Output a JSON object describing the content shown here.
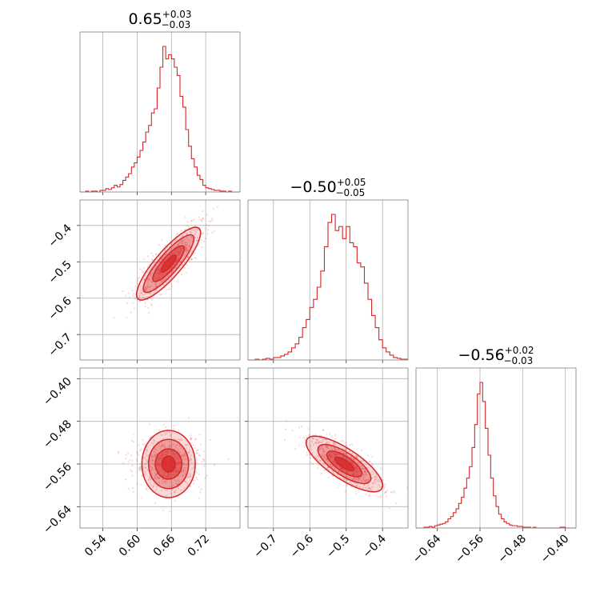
{
  "colors": {
    "series": "#d62728",
    "frame": "#808080",
    "grid": "#b0b0b0"
  },
  "chart_data": {
    "type": "corner",
    "description_of_parameters": 3,
    "parameters": [
      {
        "title": {
          "median": "0.65",
          "plus": "+0.03",
          "minus": "−0.03"
        },
        "range": [
          0.5,
          0.78
        ],
        "ticks": [
          0.54,
          0.6,
          0.66,
          0.72
        ],
        "tick_labels": [
          "0.54",
          "0.60",
          "0.66",
          "0.72"
        ],
        "hist_bins": [
          0.5,
          0.505,
          0.51,
          0.515,
          0.52,
          0.525,
          0.53,
          0.535,
          0.54,
          0.545,
          0.55,
          0.555,
          0.56,
          0.565,
          0.57,
          0.575,
          0.58,
          0.585,
          0.59,
          0.595,
          0.6,
          0.605,
          0.61,
          0.615,
          0.62,
          0.625,
          0.63,
          0.635,
          0.64,
          0.645,
          0.65,
          0.655,
          0.66,
          0.665,
          0.67,
          0.675,
          0.68,
          0.685,
          0.69,
          0.695,
          0.7,
          0.705,
          0.71,
          0.715,
          0.72,
          0.725,
          0.73,
          0.735,
          0.74,
          0.745,
          0.75,
          0.755,
          0.76,
          0.765,
          0.77,
          0.775,
          0.78
        ],
        "hist_counts": [
          0,
          0,
          1,
          0,
          1,
          1,
          0,
          2,
          2,
          4,
          3,
          5,
          8,
          6,
          9,
          14,
          18,
          22,
          30,
          35,
          42,
          50,
          60,
          72,
          80,
          95,
          100,
          125,
          150,
          175,
          160,
          165,
          160,
          150,
          140,
          115,
          102,
          75,
          55,
          40,
          30,
          20,
          15,
          8,
          5,
          4,
          3,
          2,
          2,
          1,
          1,
          0,
          1,
          0,
          0,
          0
        ]
      },
      {
        "title": {
          "median": "−0.50",
          "plus": "+0.05",
          "minus": "−0.05"
        },
        "range": [
          -0.77,
          -0.33
        ],
        "ticks": [
          -0.7,
          -0.6,
          -0.5,
          -0.4
        ],
        "tick_labels": [
          "−0.7",
          "−0.6",
          "−0.5",
          "−0.4"
        ],
        "hist_bins": [
          -0.77,
          -0.76,
          -0.75,
          -0.74,
          -0.73,
          -0.72,
          -0.71,
          -0.7,
          -0.69,
          -0.68,
          -0.67,
          -0.66,
          -0.65,
          -0.64,
          -0.63,
          -0.62,
          -0.61,
          -0.6,
          -0.59,
          -0.58,
          -0.57,
          -0.56,
          -0.55,
          -0.54,
          -0.53,
          -0.52,
          -0.51,
          -0.5,
          -0.49,
          -0.48,
          -0.47,
          -0.46,
          -0.45,
          -0.44,
          -0.43,
          -0.42,
          -0.41,
          -0.4,
          -0.39,
          -0.38,
          -0.37,
          -0.36,
          -0.35,
          -0.34,
          -0.33
        ],
        "hist_counts": [
          0,
          0,
          1,
          0,
          1,
          2,
          1,
          3,
          3,
          5,
          7,
          10,
          15,
          20,
          28,
          40,
          50,
          65,
          75,
          90,
          110,
          140,
          170,
          180,
          160,
          165,
          150,
          165,
          145,
          140,
          120,
          115,
          95,
          75,
          55,
          40,
          25,
          15,
          10,
          6,
          3,
          2,
          1,
          1
        ]
      },
      {
        "title": {
          "median": "−0.56",
          "plus": "+0.02",
          "minus": "−0.03"
        },
        "range": [
          -0.68,
          -0.38
        ],
        "ticks": [
          -0.64,
          -0.56,
          -0.48,
          -0.4
        ],
        "tick_labels": [
          "−0.64",
          "−0.56",
          "−0.48",
          "−0.40"
        ],
        "hist_bins": [
          -0.68,
          -0.675,
          -0.67,
          -0.665,
          -0.66,
          -0.655,
          -0.65,
          -0.645,
          -0.64,
          -0.635,
          -0.63,
          -0.625,
          -0.62,
          -0.615,
          -0.61,
          -0.605,
          -0.6,
          -0.595,
          -0.59,
          -0.585,
          -0.58,
          -0.575,
          -0.57,
          -0.565,
          -0.56,
          -0.555,
          -0.55,
          -0.545,
          -0.54,
          -0.535,
          -0.53,
          -0.525,
          -0.52,
          -0.515,
          -0.51,
          -0.505,
          -0.5,
          -0.495,
          -0.49,
          -0.485,
          -0.48,
          -0.475,
          -0.47,
          -0.465,
          -0.46,
          -0.455,
          -0.45,
          -0.44,
          -0.43,
          -0.42,
          -0.41,
          -0.4,
          -0.39,
          -0.38
        ],
        "hist_counts": [
          0,
          0,
          0,
          1,
          1,
          2,
          1,
          3,
          4,
          5,
          6,
          8,
          12,
          15,
          20,
          25,
          32,
          40,
          52,
          65,
          80,
          105,
          135,
          175,
          190,
          165,
          130,
          95,
          65,
          42,
          28,
          18,
          12,
          8,
          6,
          4,
          3,
          3,
          2,
          2,
          1,
          1,
          1,
          0,
          1,
          0,
          0,
          0,
          0,
          0,
          1,
          0,
          0
        ]
      }
    ],
    "pairs": [
      {
        "x_param": 0,
        "y_param": 1,
        "correlation": 0.85,
        "center": [
          0.655,
          -0.505
        ],
        "sigma": [
          0.028,
          0.05
        ],
        "yticks": [
          -0.4,
          -0.5,
          -0.6,
          -0.7
        ],
        "ytick_labels": [
          "−0.4",
          "−0.5",
          "−0.6",
          "−0.7"
        ]
      },
      {
        "x_param": 0,
        "y_param": 2,
        "correlation": 0.0,
        "center": [
          0.655,
          -0.56
        ],
        "sigma": [
          0.028,
          0.025
        ],
        "yticks": [
          -0.4,
          -0.48,
          -0.56,
          -0.64
        ],
        "ytick_labels": [
          "−0.40",
          "−0.48",
          "−0.56",
          "−0.64"
        ]
      },
      {
        "x_param": 1,
        "y_param": 2,
        "correlation": -0.75,
        "center": [
          -0.505,
          -0.56
        ],
        "sigma": [
          0.05,
          0.025
        ],
        "yticks": [
          -0.4,
          -0.48,
          -0.56,
          -0.64
        ],
        "ytick_labels": []
      }
    ],
    "contour_levels": [
      "0.5-sigma",
      "1-sigma",
      "1.5-sigma",
      "2-sigma"
    ],
    "grid": true
  }
}
